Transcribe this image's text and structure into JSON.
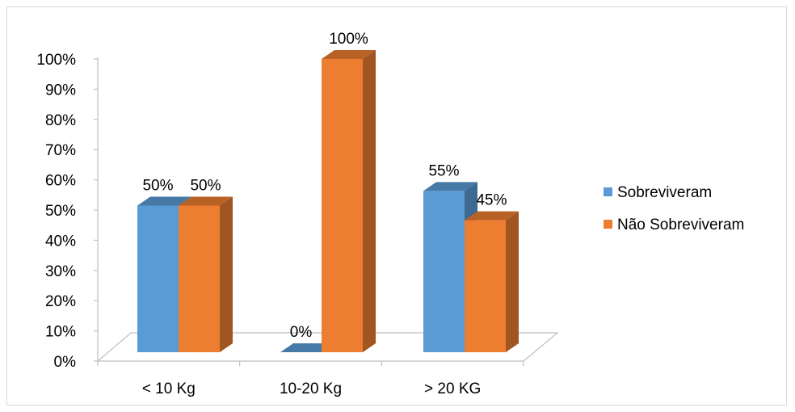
{
  "chart_data": {
    "type": "bar",
    "categories": [
      "< 10 Kg",
      "10-20 Kg",
      "> 20 KG"
    ],
    "series": [
      {
        "name": "Sobreviveram",
        "values": [
          50,
          0,
          55
        ],
        "labels": [
          "50%",
          "0%",
          "55%"
        ],
        "color": "#5b9bd5"
      },
      {
        "name": "Não Sobreviveram",
        "values": [
          50,
          100,
          45
        ],
        "labels": [
          "50%",
          "100%",
          "45%"
        ],
        "color": "#ed7d31"
      }
    ],
    "ylim": [
      0,
      100
    ],
    "yticks": [
      "0%",
      "10%",
      "20%",
      "30%",
      "40%",
      "50%",
      "60%",
      "70%",
      "80%",
      "90%",
      "100%"
    ],
    "legend": "right",
    "grid": false,
    "style": "3d-clustered-column"
  }
}
